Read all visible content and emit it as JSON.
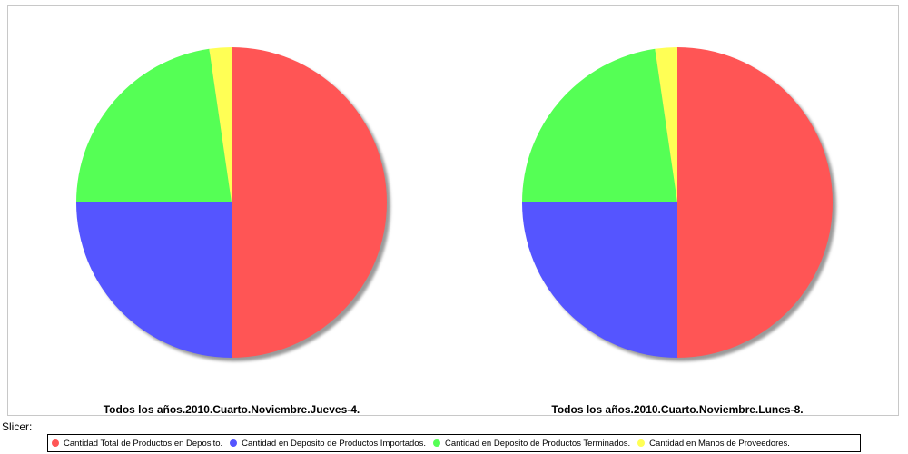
{
  "chart_data": [
    {
      "type": "pie",
      "title": "Todos los años.2010.Cuarto.Noviembre.Jueves-4.",
      "labels": [
        "Cantidad Total de Productos en Deposito.",
        "Cantidad en Deposito de Productos Importados.",
        "Cantidad en Deposito de Productos Terminados.",
        "Cantidad en Manos de Proveedores."
      ],
      "values": [
        50.0,
        25.0,
        22.7,
        2.3
      ]
    },
    {
      "type": "pie",
      "title": "Todos los años.2010.Cuarto.Noviembre.Lunes-8.",
      "labels": [
        "Cantidad Total de Productos en Deposito.",
        "Cantidad en Deposito de Productos Importados.",
        "Cantidad en Deposito de Productos Terminados.",
        "Cantidad en Manos de Proveedores."
      ],
      "values": [
        50.0,
        25.0,
        22.7,
        2.3
      ]
    }
  ],
  "colors": [
    "#ff5555",
    "#5555ff",
    "#55ff55",
    "#ffff55"
  ],
  "slicer_label": "Slicer:",
  "legend": [
    "Cantidad Total de Productos en Deposito.",
    "Cantidad en Deposito de Productos Importados.",
    "Cantidad en Deposito de Productos Terminados.",
    "Cantidad en Manos de Proveedores."
  ]
}
